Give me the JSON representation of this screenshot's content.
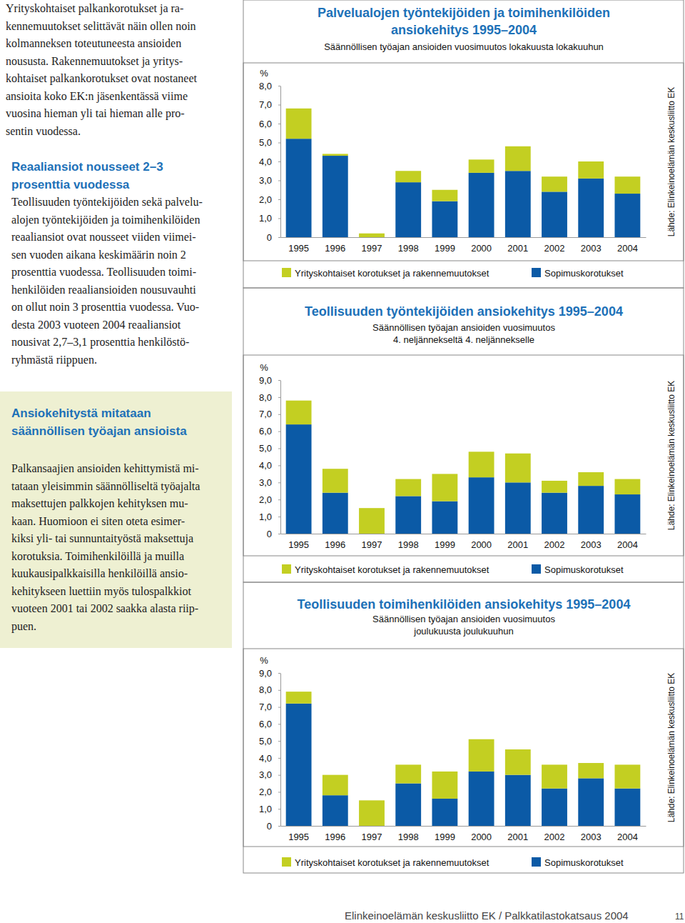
{
  "chart_data": [
    {
      "type": "bar",
      "stacked": true,
      "legend": "bottom",
      "title": [
        "Palvelualojen työntekijöiden ja toimihenkilöiden",
        "ansiokehitys 1995–2004"
      ],
      "subtitle": [
        "Säännöllisen työajan ansioiden vuosimuutos lokakuusta lokakuuhun"
      ],
      "y_label": "%",
      "source": "Lähde: Elinkeinoelämän keskusliitto EK",
      "categories": [
        "1995",
        "1996",
        "1997",
        "1998",
        "1999",
        "2000",
        "2001",
        "2002",
        "2003",
        "2004"
      ],
      "series": [
        {
          "name": "Yrityskohtaiset korotukset ja rakennemuutokset",
          "color": "#c3cf22",
          "values": [
            1.6,
            0.1,
            0.2,
            0.6,
            0.6,
            0.7,
            1.3,
            0.8,
            0.9,
            0.9
          ]
        },
        {
          "name": "Sopimuskorotukset",
          "color": "#0b5aa6",
          "values": [
            5.2,
            4.3,
            0,
            2.9,
            1.9,
            3.4,
            3.5,
            2.4,
            3.1,
            2.3
          ]
        }
      ],
      "ylim": [
        0,
        8
      ],
      "yticks": [
        0,
        {
          "value": 1,
          "label": "1,0"
        },
        {
          "value": 2,
          "label": "2,0"
        },
        {
          "value": 3,
          "label": "3,0"
        },
        {
          "value": 4,
          "label": "4,0"
        },
        {
          "value": 5,
          "label": "5,0"
        },
        {
          "value": 6,
          "label": "6,0"
        },
        {
          "value": 7,
          "label": "7,0"
        },
        {
          "value": 8,
          "label": "8,0"
        }
      ]
    },
    {
      "type": "bar",
      "stacked": true,
      "legend": "bottom",
      "title": [
        "Teollisuuden työntekijöiden ansiokehitys 1995–2004"
      ],
      "subtitle": [
        "Säännöllisen työajan ansioiden vuosimuutos",
        "4. neljännekseltä 4. neljännekselle"
      ],
      "y_label": "%",
      "source": "Lähde: Elinkeinoelämän keskusliitto EK",
      "categories": [
        "1995",
        "1996",
        "1997",
        "1998",
        "1999",
        "2000",
        "2001",
        "2002",
        "2003",
        "2004"
      ],
      "series": [
        {
          "name": "Yrityskohtaiset korotukset ja rakennemuutokset",
          "color": "#c3cf22",
          "values": [
            1.4,
            1.4,
            1.5,
            1.0,
            1.6,
            1.5,
            1.7,
            0.7,
            0.8,
            0.9
          ]
        },
        {
          "name": "Sopimuskorotukset",
          "color": "#0b5aa6",
          "values": [
            6.4,
            2.4,
            0,
            2.2,
            1.9,
            3.3,
            3.0,
            2.4,
            2.8,
            2.3
          ]
        }
      ],
      "ylim": [
        0,
        9
      ],
      "yticks": [
        0,
        {
          "value": 1,
          "label": "1,0"
        },
        {
          "value": 2,
          "label": "2,0"
        },
        {
          "value": 3,
          "label": "3,0"
        },
        {
          "value": 4,
          "label": "4,0"
        },
        {
          "value": 5,
          "label": "5,0"
        },
        {
          "value": 6,
          "label": "6,0"
        },
        {
          "value": 7,
          "label": "7,0"
        },
        {
          "value": 8,
          "label": "8,0"
        },
        {
          "value": 9,
          "label": "9,0"
        }
      ]
    },
    {
      "type": "bar",
      "stacked": true,
      "legend": "bottom",
      "title": [
        "Teollisuuden toimihenkilöiden ansiokehitys 1995–2004"
      ],
      "subtitle": [
        "Säännöllisen työajan ansioiden vuosimuutos",
        "joulukuusta joulukuuhun"
      ],
      "y_label": "%",
      "source": "Lähde: Elinkeinoelämän keskusliitto EK",
      "categories": [
        "1995",
        "1996",
        "1997",
        "1998",
        "1999",
        "2000",
        "2001",
        "2002",
        "2003",
        "2004"
      ],
      "series": [
        {
          "name": "Yrityskohtaiset korotukset ja rakennemuutokset",
          "color": "#c3cf22",
          "values": [
            0.7,
            1.2,
            1.5,
            1.1,
            1.6,
            1.9,
            1.5,
            1.4,
            0.9,
            1.4
          ]
        },
        {
          "name": "Sopimuskorotukset",
          "color": "#0b5aa6",
          "values": [
            7.2,
            1.8,
            0,
            2.5,
            1.6,
            3.2,
            3.0,
            2.2,
            2.8,
            2.2
          ]
        }
      ],
      "ylim": [
        0,
        9
      ],
      "yticks": [
        0,
        {
          "value": 1,
          "label": "1,0"
        },
        {
          "value": 2,
          "label": "2,0"
        },
        {
          "value": 3,
          "label": "3,0"
        },
        {
          "value": 4,
          "label": "4,0"
        },
        {
          "value": 5,
          "label": "5,0"
        },
        {
          "value": 6,
          "label": "6,0"
        },
        {
          "value": 7,
          "label": "7,0"
        },
        {
          "value": 8,
          "label": "8,0"
        },
        {
          "value": 9,
          "label": "9,0"
        }
      ]
    }
  ],
  "document": {
    "intro": [
      "Yrityskohtaiset palkankorotukset ja ra-",
      "kennemuutokset selittävät näin ollen noin",
      "kolmanneksen toteutuneesta ansioiden",
      "noususta. Rakennemuutokset ja yritys-",
      "kohtaiset palkankorotukset ovat nostaneet",
      "ansioita koko EK:n jäsenkentässä viime",
      "vuosina hieman yli tai hieman alle pro-",
      "sentin vuodessa."
    ],
    "heading": [
      "Reaaliansiot nousseet 2–3",
      "prosenttia vuodessa"
    ],
    "body": [
      "Teollisuuden työntekijöiden sekä palvelu-",
      "alojen työntekijöiden ja toimihenkilöiden",
      "reaaliansiot ovat nousseet viiden viimei-",
      "sen vuoden aikana keskimäärin noin 2",
      "prosenttia vuodessa. Teollisuuden toimi-",
      "henkilöiden reaaliansioiden nousuvauhti",
      "on ollut noin 3 prosenttia vuodessa. Vuo-",
      "desta 2003 vuoteen 2004 reaaliansiot",
      "nousivat 2,7–3,1 prosenttia henkilöstö-",
      "ryhmästä riippuen."
    ],
    "box": {
      "heading": [
        "Ansiokehitystä mitataan",
        "säännöllisen työajan ansioista"
      ],
      "body": [
        "Palkansaajien ansioiden kehittymistä mi-",
        "tataan yleisimmin säännölliseltä työajalta",
        "maksettujen palkkojen kehityksen mu-",
        "kaan. Huomioon ei siten oteta esimer-",
        "kiksi yli- tai sunnuntaityöstä maksettuja",
        "korotuksia. Toimihenkilöillä ja muilla",
        "kuukausipalkkaisilla henkilöillä ansio-",
        "kehitykseen luettiin myös tulospalkkiot",
        "vuoteen 2001 tai 2002 saakka alasta riip-",
        "puen."
      ]
    },
    "footer": "Elinkeinoelämän keskusliitto EK / Palkkatilastokatsaus 2004",
    "page": 11
  }
}
